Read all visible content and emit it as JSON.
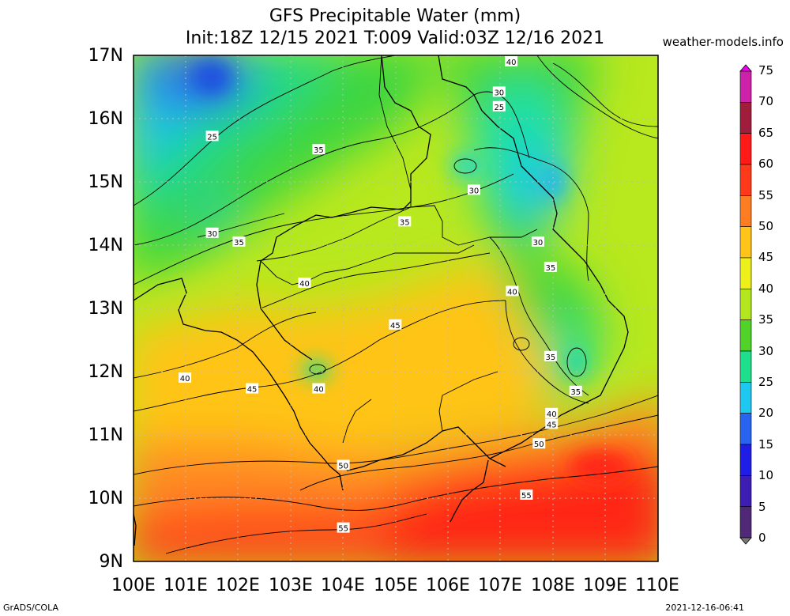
{
  "title": "GFS Precipitable Water (mm)",
  "subtitle": "Init:18Z 12/15 2021 T:009 Valid:03Z 12/16 2021",
  "credit": "weather-models.info",
  "footer_left": "GrADS/COLA",
  "footer_right": "2021-12-16-06:41",
  "lat_labels": [
    "17N",
    "16N",
    "15N",
    "14N",
    "13N",
    "12N",
    "11N",
    "10N",
    "9N"
  ],
  "lon_labels": [
    "100E",
    "101E",
    "102E",
    "103E",
    "104E",
    "105E",
    "106E",
    "107E",
    "108E",
    "109E",
    "110E"
  ],
  "colorbar": {
    "labels": [
      "75",
      "70",
      "65",
      "60",
      "55",
      "50",
      "45",
      "40",
      "35",
      "30",
      "25",
      "20",
      "15",
      "10",
      "5",
      "0"
    ],
    "colors": [
      "#ee00ee",
      "#cc22aa",
      "#a01e3c",
      "#ff1a1a",
      "#ff3a1a",
      "#ff7d22",
      "#ffc419",
      "#eef01c",
      "#b4e61e",
      "#50d228",
      "#1ee08c",
      "#1ec8f0",
      "#2864f0",
      "#1e1ee6",
      "#3c1eb4",
      "#502878",
      "#787878"
    ]
  },
  "contour_labels": [
    {
      "text": "40",
      "lon": 107.2,
      "lat": 16.9
    },
    {
      "text": "30",
      "lon": 106.97,
      "lat": 16.42
    },
    {
      "text": "25",
      "lon": 106.97,
      "lat": 16.19
    },
    {
      "text": "25",
      "lon": 101.5,
      "lat": 15.72
    },
    {
      "text": "35",
      "lon": 103.53,
      "lat": 15.51
    },
    {
      "text": "30",
      "lon": 106.49,
      "lat": 14.87
    },
    {
      "text": "35",
      "lon": 105.17,
      "lat": 14.37
    },
    {
      "text": "30",
      "lon": 101.5,
      "lat": 14.19
    },
    {
      "text": "35",
      "lon": 102.01,
      "lat": 14.05
    },
    {
      "text": "30",
      "lon": 107.71,
      "lat": 14.05
    },
    {
      "text": "35",
      "lon": 107.95,
      "lat": 13.65
    },
    {
      "text": "40",
      "lon": 103.26,
      "lat": 13.4
    },
    {
      "text": "40",
      "lon": 107.22,
      "lat": 13.27
    },
    {
      "text": "45",
      "lon": 104.99,
      "lat": 12.74
    },
    {
      "text": "35",
      "lon": 107.95,
      "lat": 12.24
    },
    {
      "text": "40",
      "lon": 100.98,
      "lat": 11.9
    },
    {
      "text": "45",
      "lon": 102.26,
      "lat": 11.73
    },
    {
      "text": "40",
      "lon": 103.53,
      "lat": 11.73
    },
    {
      "text": "35",
      "lon": 108.43,
      "lat": 11.69
    },
    {
      "text": "40",
      "lon": 107.97,
      "lat": 11.34
    },
    {
      "text": "45",
      "lon": 107.97,
      "lat": 11.17
    },
    {
      "text": "50",
      "lon": 107.73,
      "lat": 10.86
    },
    {
      "text": "50",
      "lon": 104.0,
      "lat": 10.52
    },
    {
      "text": "55",
      "lon": 107.49,
      "lat": 10.05
    },
    {
      "text": "55",
      "lon": 104.0,
      "lat": 9.53
    }
  ]
}
